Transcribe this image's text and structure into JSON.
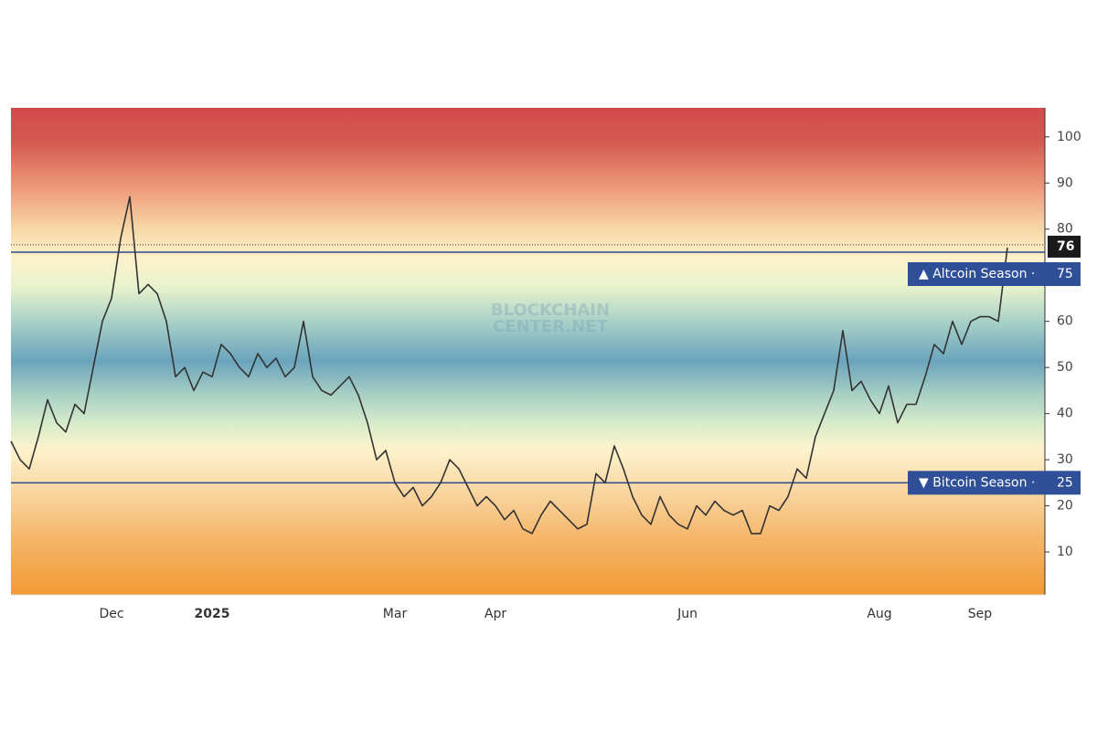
{
  "chart_data": {
    "type": "line",
    "watermark": [
      "BLOCKCHAIN",
      "CENTER.NET"
    ],
    "categories": [
      null,
      null,
      null,
      null,
      null,
      null,
      null,
      null,
      null,
      null,
      null,
      "Dec",
      null,
      null,
      null,
      null,
      null,
      null,
      null,
      null,
      null,
      null,
      "2025",
      null,
      null,
      null,
      null,
      null,
      null,
      null,
      null,
      null,
      null,
      null,
      null,
      null,
      null,
      null,
      null,
      null,
      null,
      null,
      "Mar",
      null,
      null,
      null,
      null,
      null,
      null,
      null,
      null,
      null,
      null,
      "Apr",
      null,
      null,
      null,
      null,
      null,
      null,
      null,
      null,
      null,
      null,
      null,
      null,
      null,
      null,
      null,
      null,
      null,
      null,
      null,
      null,
      "Jun",
      null,
      null,
      null,
      null,
      null,
      null,
      null,
      null,
      null,
      null,
      null,
      null,
      null,
      null,
      null,
      null,
      null,
      null,
      null,
      null,
      "Aug",
      null,
      null,
      null,
      null,
      null,
      null,
      null,
      null,
      null,
      null,
      "Sep",
      null,
      null,
      null
    ],
    "values": [
      34,
      30,
      28,
      35,
      43,
      38,
      36,
      42,
      40,
      50,
      60,
      65,
      78,
      87,
      66,
      68,
      66,
      60,
      48,
      50,
      45,
      49,
      48,
      55,
      53,
      50,
      48,
      53,
      50,
      52,
      48,
      50,
      60,
      48,
      45,
      44,
      46,
      48,
      44,
      38,
      30,
      32,
      25,
      22,
      24,
      20,
      22,
      25,
      30,
      28,
      24,
      20,
      22,
      20,
      17,
      19,
      15,
      14,
      18,
      21,
      19,
      17,
      15,
      16,
      27,
      25,
      33,
      28,
      22,
      18,
      16,
      22,
      18,
      16,
      15,
      20,
      18,
      21,
      19,
      18,
      19,
      14,
      14,
      20,
      19,
      22,
      28,
      26,
      35,
      40,
      45,
      58,
      45,
      47,
      43,
      40,
      46,
      38,
      42,
      42,
      48,
      55,
      53,
      60,
      55,
      60,
      61,
      61,
      60,
      76
    ],
    "color": "#333333",
    "ylim": [
      0.7,
      106.3
    ],
    "yticks": [
      10,
      20,
      30,
      40,
      50,
      60,
      70,
      80,
      90,
      100
    ],
    "annotations": [
      {
        "label": "▲ Altcoin Season ·",
        "value": 75
      },
      {
        "label": "▼ Bitcoin Season ·",
        "value": 25
      }
    ]
  }
}
